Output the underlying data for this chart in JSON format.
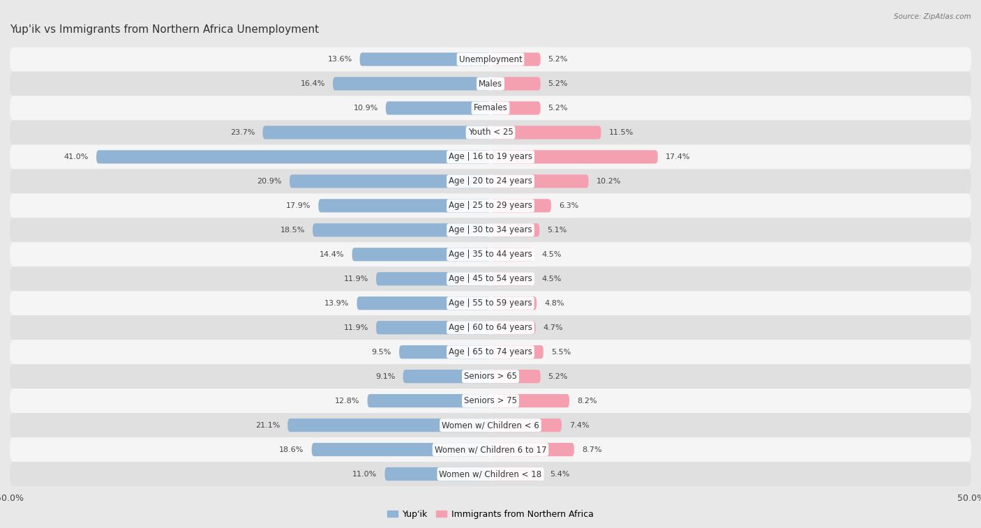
{
  "title": "Yup'ik vs Immigrants from Northern Africa Unemployment",
  "source": "Source: ZipAtlas.com",
  "categories": [
    "Unemployment",
    "Males",
    "Females",
    "Youth < 25",
    "Age | 16 to 19 years",
    "Age | 20 to 24 years",
    "Age | 25 to 29 years",
    "Age | 30 to 34 years",
    "Age | 35 to 44 years",
    "Age | 45 to 54 years",
    "Age | 55 to 59 years",
    "Age | 60 to 64 years",
    "Age | 65 to 74 years",
    "Seniors > 65",
    "Seniors > 75",
    "Women w/ Children < 6",
    "Women w/ Children 6 to 17",
    "Women w/ Children < 18"
  ],
  "yupik_values": [
    13.6,
    16.4,
    10.9,
    23.7,
    41.0,
    20.9,
    17.9,
    18.5,
    14.4,
    11.9,
    13.9,
    11.9,
    9.5,
    9.1,
    12.8,
    21.1,
    18.6,
    11.0
  ],
  "immigrant_values": [
    5.2,
    5.2,
    5.2,
    11.5,
    17.4,
    10.2,
    6.3,
    5.1,
    4.5,
    4.5,
    4.8,
    4.7,
    5.5,
    5.2,
    8.2,
    7.4,
    8.7,
    5.4
  ],
  "yupik_color": "#92b4d4",
  "immigrant_color": "#f4a0b0",
  "yupik_label": "Yup'ik",
  "immigrant_label": "Immigrants from Northern Africa",
  "axis_max": 50.0,
  "bg_color": "#e8e8e8",
  "row_bg_odd": "#f5f5f5",
  "row_bg_even": "#e0e0e0",
  "title_fontsize": 11,
  "label_fontsize": 8.5,
  "value_fontsize": 8.0
}
